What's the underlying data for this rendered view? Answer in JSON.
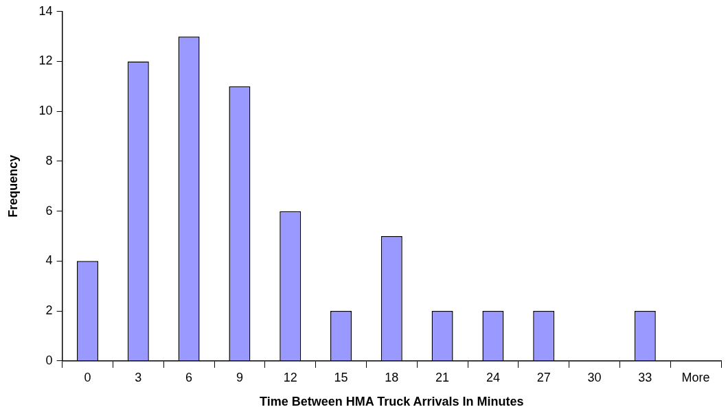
{
  "chart_data": {
    "type": "bar",
    "xlabel": "Time Between HMA Truck Arrivals In Minutes",
    "ylabel": "Frequency",
    "categories": [
      "0",
      "3",
      "6",
      "9",
      "12",
      "15",
      "18",
      "21",
      "24",
      "27",
      "30",
      "33",
      "More"
    ],
    "values": [
      4,
      12,
      13,
      11,
      6,
      2,
      5,
      2,
      2,
      2,
      0,
      2,
      0
    ],
    "color": "#9999ff",
    "ylim": [
      0,
      14
    ],
    "yticks": [
      0,
      2,
      4,
      6,
      8,
      10,
      12,
      14
    ]
  }
}
